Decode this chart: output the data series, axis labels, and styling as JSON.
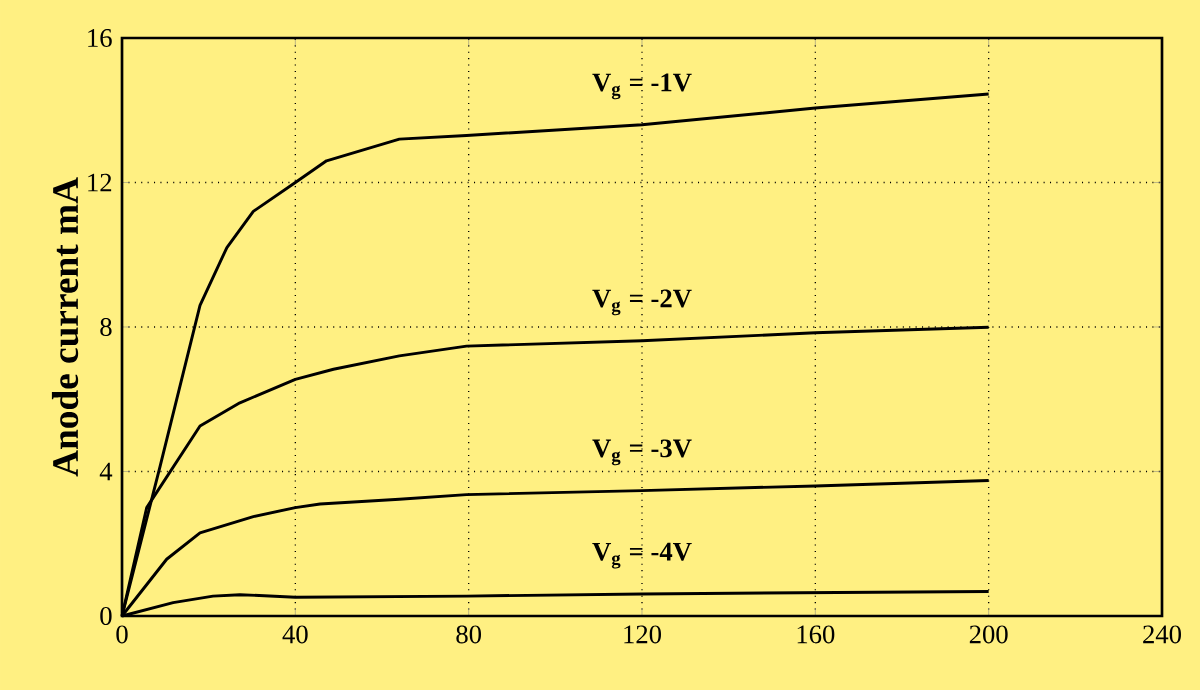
{
  "chart_data": {
    "type": "line",
    "ylabel": "Anode current mA",
    "xlim": [
      0,
      240
    ],
    "ylim": [
      0,
      16
    ],
    "xticks": [
      0,
      40,
      80,
      120,
      160,
      200,
      240
    ],
    "yticks": [
      0,
      4,
      8,
      12,
      16
    ],
    "grid": true,
    "legend": false,
    "marker": "none",
    "line_style": "solid",
    "series": [
      {
        "name": "**V$_{g}$ = -1V**",
        "color": "#000000",
        "x": [
          0,
          8.8,
          18,
          24.2,
          30.3,
          40,
          47.2,
          64,
          79.5,
          120,
          160,
          200
        ],
        "values": [
          0,
          4.15,
          8.6,
          10.2,
          11.2,
          12,
          12.6,
          13.2,
          13.3,
          13.6,
          14.06,
          14.45
        ]
      },
      {
        "name": "**V$_{g}$ = -2V**",
        "color": "#000000",
        "x": [
          0,
          5.7,
          18,
          27.2,
          40,
          48.8,
          64,
          79.5,
          120,
          160,
          200
        ],
        "values": [
          0,
          3.0,
          5.26,
          5.9,
          6.55,
          6.83,
          7.2,
          7.47,
          7.62,
          7.84,
          7.99
        ]
      },
      {
        "name": "**V$_{g}$ = -3V**",
        "color": "#000000",
        "x": [
          0,
          10.3,
          18,
          30.3,
          40,
          45.7,
          64,
          79.5,
          120,
          160,
          200
        ],
        "values": [
          0,
          1.57,
          2.3,
          2.75,
          3.0,
          3.1,
          3.23,
          3.36,
          3.47,
          3.6,
          3.75
        ]
      },
      {
        "name": "**V$_{g}$ = -4V**",
        "color": "#000000",
        "x": [
          0,
          11.8,
          21,
          27.2,
          40,
          79.5,
          120,
          200
        ],
        "values": [
          0,
          0.37,
          0.55,
          0.59,
          0.52,
          0.55,
          0.61,
          0.68
        ]
      }
    ]
  }
}
